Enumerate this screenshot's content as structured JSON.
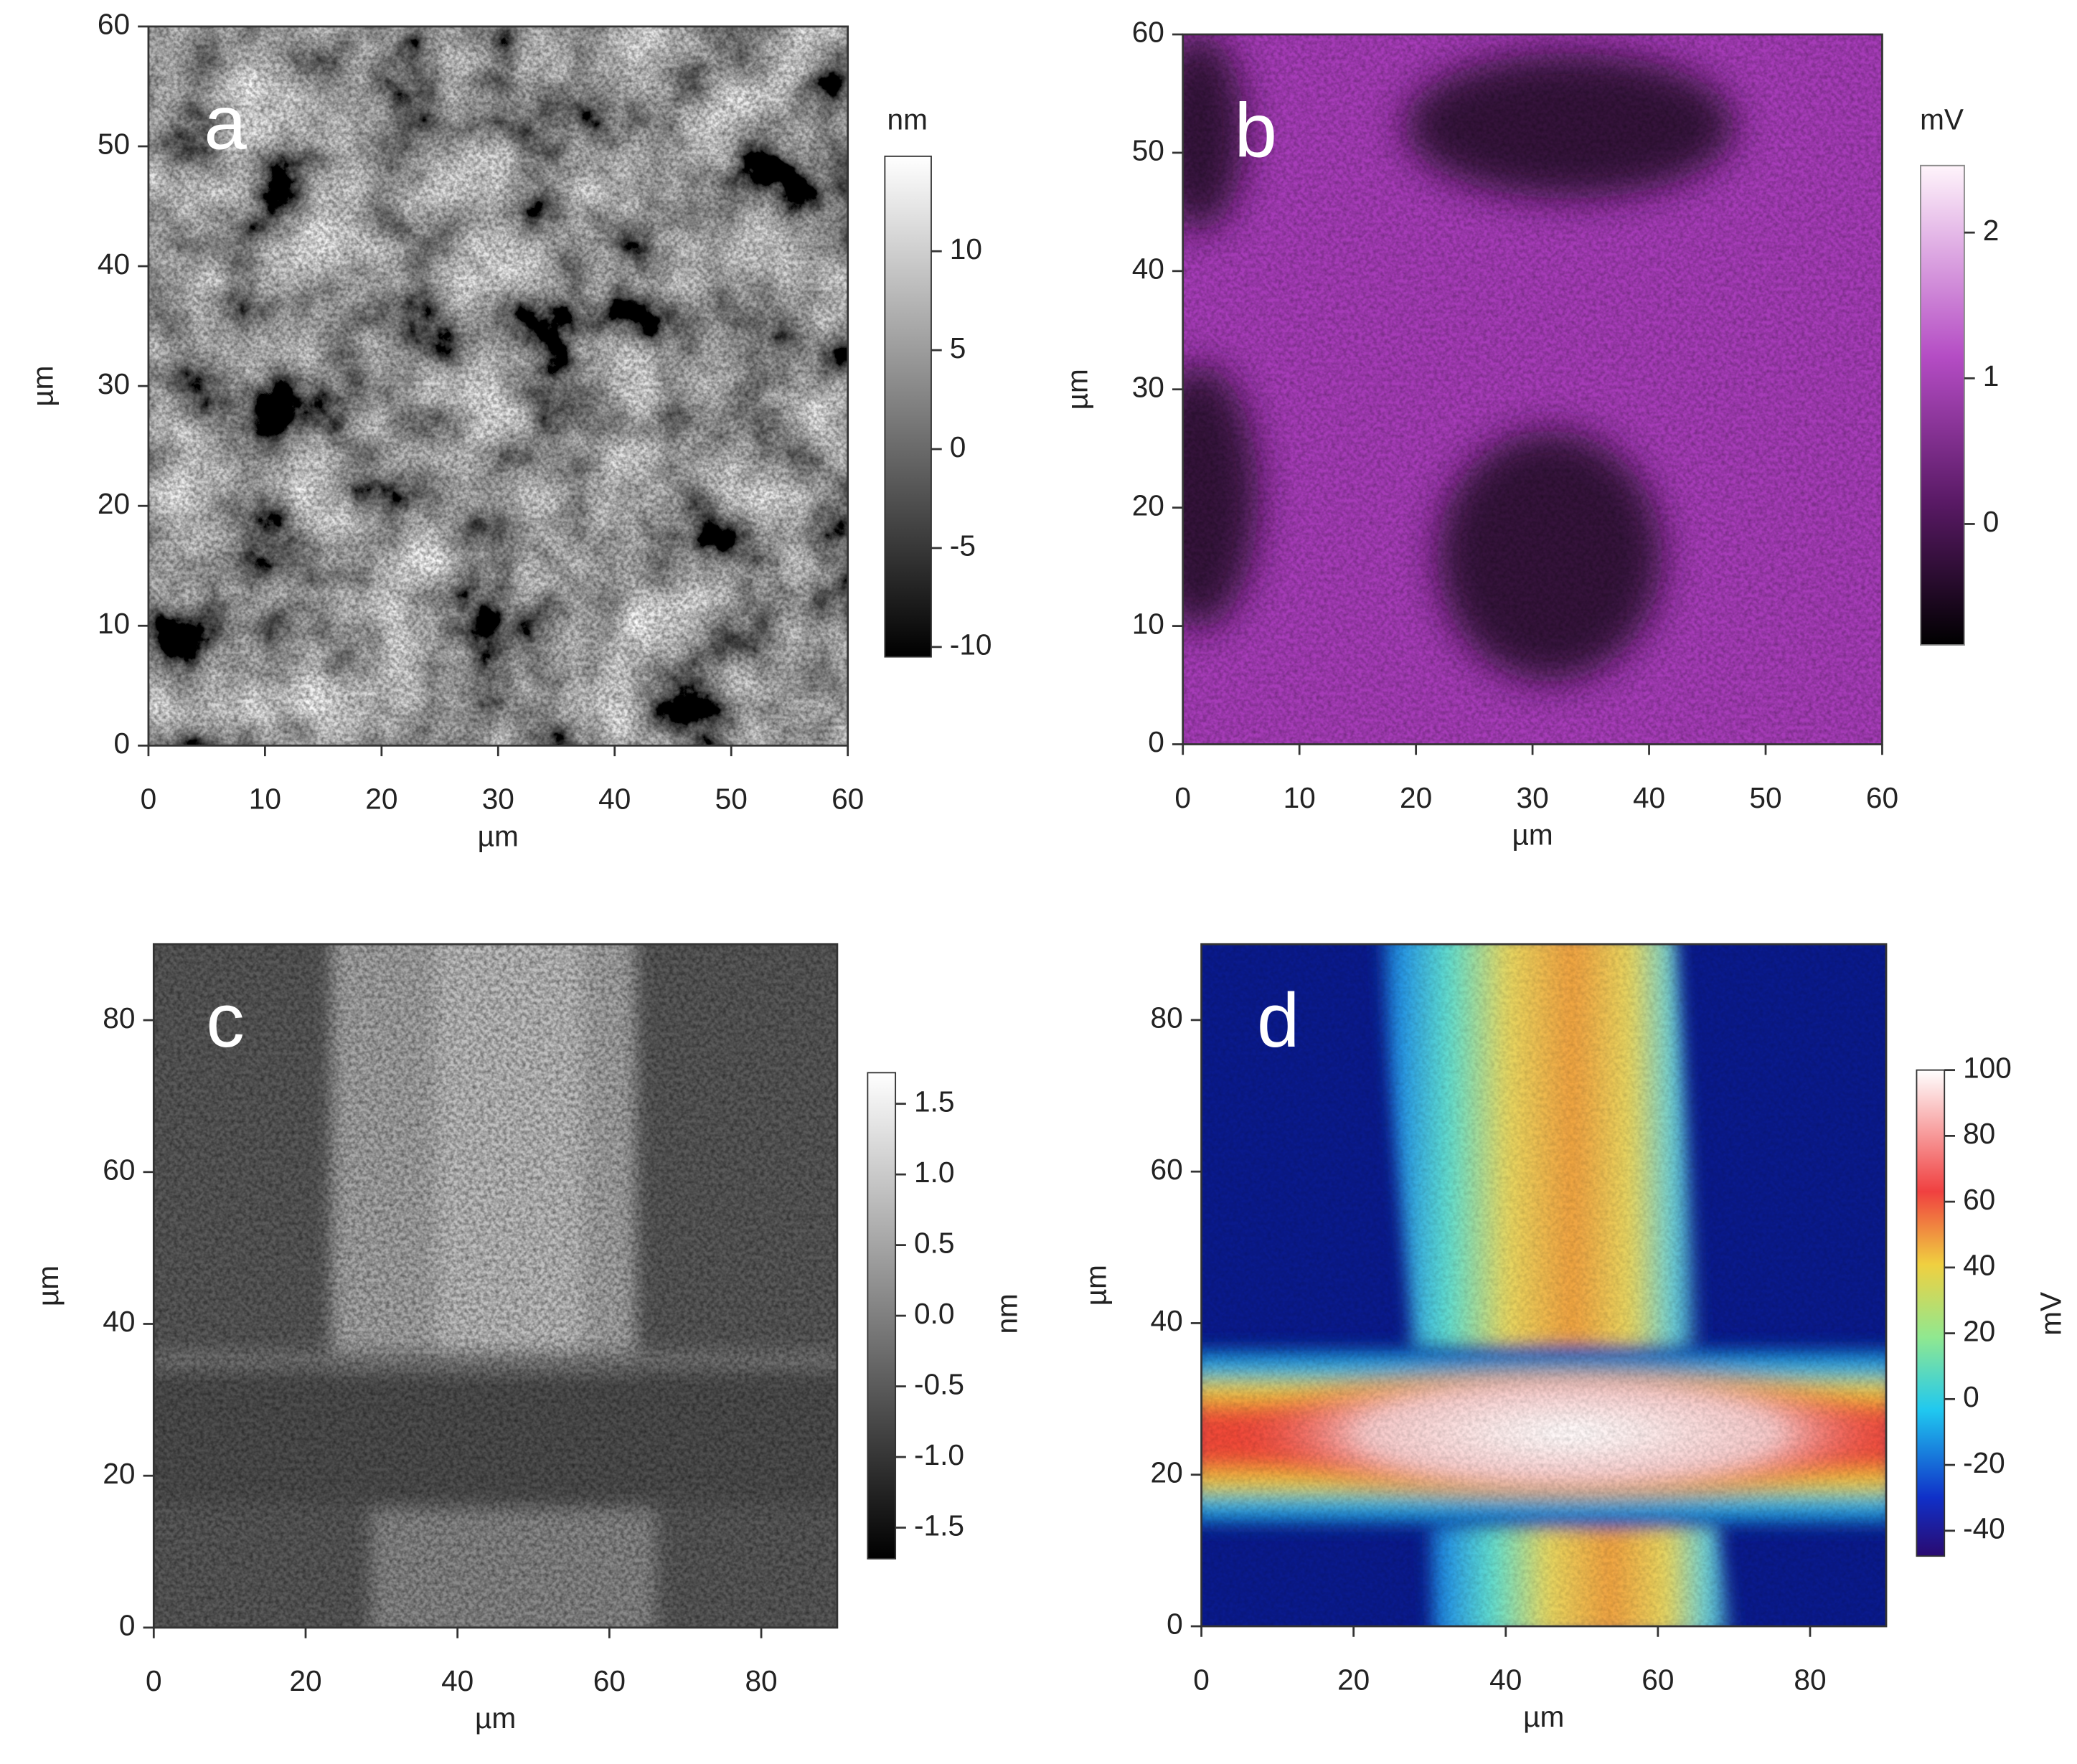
{
  "chart_data": [
    {
      "type": "heatmap",
      "panel_label": "a",
      "xlabel": "µm",
      "ylabel": "µm",
      "xlim": [
        0,
        60
      ],
      "ylim": [
        0,
        60
      ],
      "xticks": [
        0,
        10,
        20,
        30,
        40,
        50,
        60
      ],
      "yticks": [
        0,
        10,
        20,
        30,
        40,
        50,
        60
      ],
      "colorbar": {
        "label": "nm",
        "lim": [
          -10.5,
          14.8
        ],
        "ticks": [
          10,
          5,
          0,
          -5,
          -10
        ]
      }
    },
    {
      "type": "heatmap",
      "panel_label": "b",
      "xlabel": "µm",
      "ylabel": "µm",
      "xlim": [
        0,
        60
      ],
      "ylim": [
        0,
        60
      ],
      "xticks": [
        0,
        10,
        20,
        30,
        40,
        50,
        60
      ],
      "yticks": [
        0,
        10,
        20,
        30,
        40,
        50,
        60
      ],
      "colorbar": {
        "label": "mV",
        "lim": [
          -0.83,
          2.46
        ],
        "ticks": [
          2,
          1,
          0
        ]
      }
    },
    {
      "type": "heatmap",
      "panel_label": "c",
      "xlabel": "µm",
      "ylabel": "µm",
      "xlim": [
        0,
        90
      ],
      "ylim": [
        0,
        90
      ],
      "xticks": [
        0,
        20,
        40,
        60,
        80
      ],
      "yticks": [
        0,
        20,
        40,
        60,
        80
      ],
      "colorbar": {
        "label": "nm",
        "lim": [
          -1.72,
          1.72
        ],
        "ticks": [
          1.5,
          {
            "value": 1,
            "label": "1.0"
          },
          0.5,
          {
            "value": 0,
            "label": "0.0"
          },
          -0.5,
          {
            "value": -1,
            "label": "-1.0"
          },
          -1.5
        ]
      }
    },
    {
      "type": "heatmap",
      "panel_label": "d",
      "xlabel": "µm",
      "ylabel": "µm",
      "xlim": [
        0,
        90
      ],
      "ylim": [
        0,
        90
      ],
      "xticks": [
        0,
        20,
        40,
        60,
        80
      ],
      "yticks": [
        0,
        20,
        40,
        60,
        80
      ],
      "colorbar": {
        "label": "mV",
        "lim": [
          -47.7,
          100
        ],
        "ticks": [
          100,
          80,
          60,
          40,
          20,
          0,
          -20,
          -40
        ]
      }
    }
  ]
}
